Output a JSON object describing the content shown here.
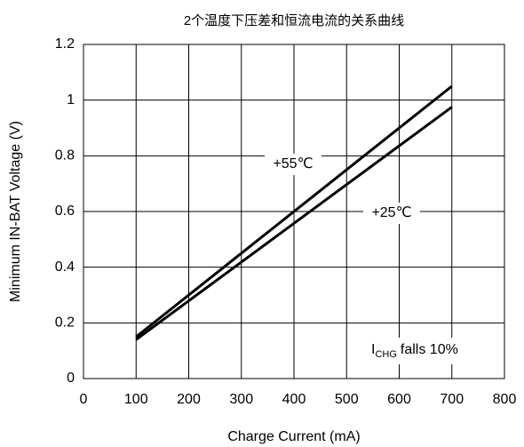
{
  "chart_data": {
    "type": "line",
    "title": "2个温度下压差和恒流电流的关系曲线",
    "x_label": "Charge Current (mA)",
    "y_label": "Minimum IN-BAT Voltage (V)",
    "x": [
      100,
      700
    ],
    "series": [
      {
        "name": "+55℃",
        "color": "#000000",
        "values": [
          0.15,
          1.05
        ]
      },
      {
        "name": "+25℃",
        "color": "#000000",
        "values": [
          0.14,
          0.975
        ]
      }
    ],
    "xlim": [
      0,
      800
    ],
    "xticks": [
      0,
      100,
      200,
      300,
      400,
      500,
      600,
      700,
      800
    ],
    "ylim": [
      0,
      1.2
    ],
    "yticks": [
      0,
      0.2,
      0.4,
      0.6,
      0.8,
      1,
      1.2
    ],
    "grid": true,
    "note": {
      "text": "I",
      "subscript": "CHG",
      "suffix": "falls 10%"
    }
  }
}
